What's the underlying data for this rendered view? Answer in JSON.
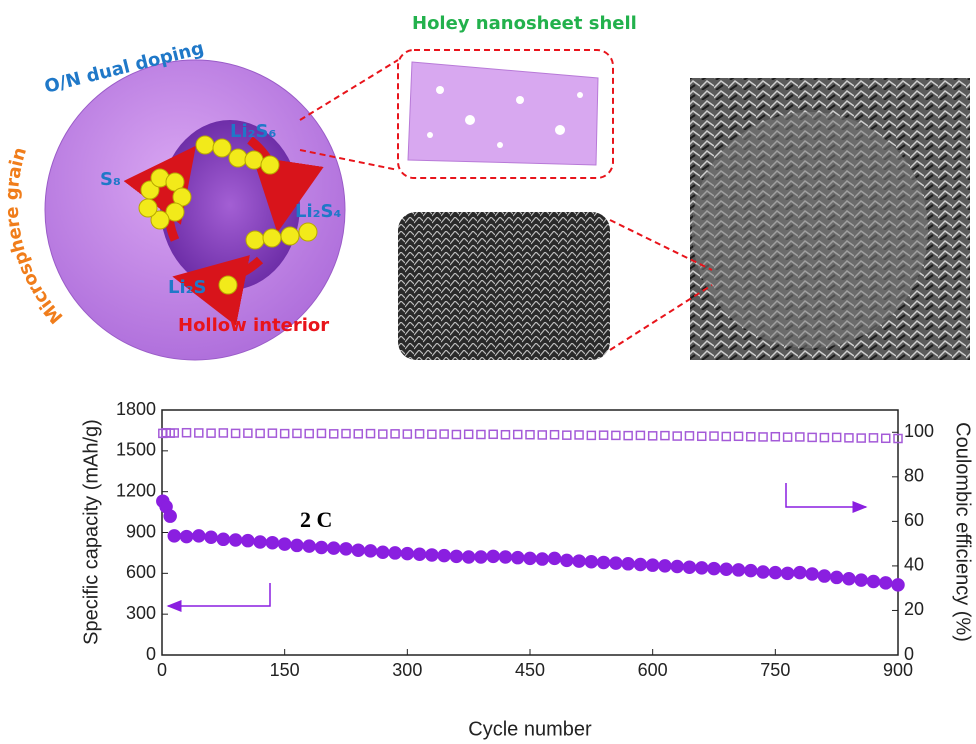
{
  "figure": {
    "shell_label": "Holey nanosheet shell",
    "doping_label": "O/N dual doping",
    "grain_label": "Microsphere grain",
    "hollow_label": "Hollow interior",
    "species": [
      "Li₂S₆",
      "S₈",
      "Li₂S₄",
      "Li₂S"
    ]
  },
  "chart_data": {
    "type": "scatter",
    "annotation": "2 C",
    "xlabel": "Cycle number",
    "ylabel": "Specific capacity (mAh/g)",
    "y2label": "Coulombic efficiency (%)",
    "xlim": [
      0,
      900
    ],
    "xticks": [
      0,
      150,
      300,
      450,
      600,
      750,
      900
    ],
    "ylim": [
      0,
      1800
    ],
    "yticks": [
      0,
      300,
      600,
      900,
      1200,
      1500,
      1800
    ],
    "y2lim": [
      0,
      110
    ],
    "y2ticks": [
      0,
      20,
      40,
      60,
      80,
      100
    ],
    "x": [
      1,
      5,
      10,
      15,
      30,
      45,
      60,
      75,
      90,
      105,
      120,
      135,
      150,
      165,
      180,
      195,
      210,
      225,
      240,
      255,
      270,
      285,
      300,
      315,
      330,
      345,
      360,
      375,
      390,
      405,
      420,
      435,
      450,
      465,
      480,
      495,
      510,
      525,
      540,
      555,
      570,
      585,
      600,
      615,
      630,
      645,
      660,
      675,
      690,
      705,
      720,
      735,
      750,
      765,
      780,
      795,
      810,
      825,
      840,
      855,
      870,
      885,
      900
    ],
    "series": [
      {
        "name": "Specific capacity",
        "color": "#8a1fe0",
        "marker": "circle",
        "values": [
          1130,
          1090,
          1020,
          875,
          870,
          875,
          865,
          850,
          845,
          840,
          830,
          825,
          815,
          805,
          800,
          790,
          785,
          780,
          770,
          765,
          755,
          750,
          745,
          740,
          735,
          730,
          725,
          720,
          720,
          725,
          720,
          715,
          710,
          705,
          710,
          695,
          690,
          685,
          680,
          675,
          670,
          665,
          660,
          655,
          650,
          645,
          640,
          635,
          630,
          625,
          620,
          610,
          605,
          600,
          605,
          595,
          580,
          570,
          560,
          550,
          540,
          530,
          515
        ]
      },
      {
        "name": "Coulombic efficiency",
        "color": "#a45ad8",
        "marker": "square",
        "axis": "y2",
        "values": [
          99.5,
          99.8,
          99.6,
          99.7,
          99.8,
          99.7,
          99.6,
          99.7,
          99.5,
          99.6,
          99.5,
          99.6,
          99.4,
          99.5,
          99.4,
          99.5,
          99.3,
          99.4,
          99.3,
          99.4,
          99.2,
          99.3,
          99.2,
          99.3,
          99.1,
          99.2,
          99.0,
          99.1,
          99.0,
          99.1,
          98.9,
          99.0,
          98.9,
          98.8,
          98.9,
          98.7,
          98.8,
          98.6,
          98.7,
          98.6,
          98.5,
          98.6,
          98.4,
          98.5,
          98.3,
          98.4,
          98.2,
          98.3,
          98.1,
          98.2,
          98.0,
          97.9,
          98.0,
          97.8,
          97.9,
          97.7,
          97.6,
          97.7,
          97.5,
          97.4,
          97.5,
          97.3,
          97.2
        ]
      }
    ]
  }
}
